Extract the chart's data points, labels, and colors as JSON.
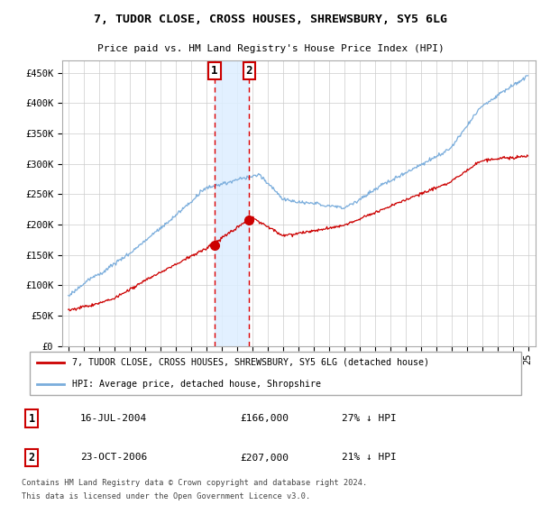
{
  "title": "7, TUDOR CLOSE, CROSS HOUSES, SHREWSBURY, SY5 6LG",
  "subtitle": "Price paid vs. HM Land Registry's House Price Index (HPI)",
  "legend_red": "7, TUDOR CLOSE, CROSS HOUSES, SHREWSBURY, SY5 6LG (detached house)",
  "legend_blue": "HPI: Average price, detached house, Shropshire",
  "sale1_x": 2004.542,
  "sale1_price": 166000,
  "sale2_x": 2006.81,
  "sale2_price": 207000,
  "footer1": "Contains HM Land Registry data © Crown copyright and database right 2024.",
  "footer2": "This data is licensed under the Open Government Licence v3.0.",
  "row1_date": "16-JUL-2004",
  "row1_price": "£166,000",
  "row1_note": "27% ↓ HPI",
  "row2_date": "23-OCT-2006",
  "row2_price": "£207,000",
  "row2_note": "21% ↓ HPI",
  "ylim_max": 470000,
  "yticks": [
    0,
    50000,
    100000,
    150000,
    200000,
    250000,
    300000,
    350000,
    400000,
    450000
  ],
  "yticklabels": [
    "£0",
    "£50K",
    "£100K",
    "£150K",
    "£200K",
    "£250K",
    "£300K",
    "£350K",
    "£400K",
    "£450K"
  ],
  "hpi_color": "#7aaddc",
  "red_color": "#cc0000",
  "shade_color": "#ddeeff",
  "vline_color": "#dd0000",
  "grid_color": "#cccccc",
  "box_edge_color": "#cc0000"
}
